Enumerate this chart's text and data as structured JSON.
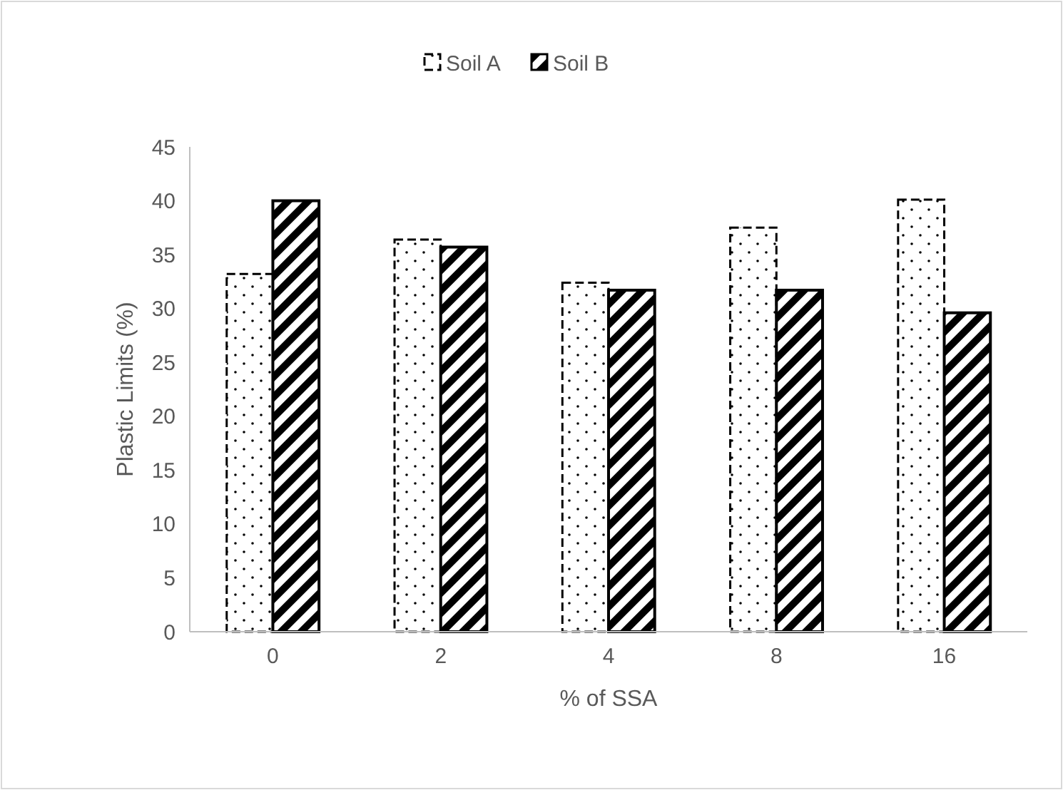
{
  "chart_data": {
    "type": "bar",
    "xlabel": "% of SSA",
    "ylabel": "Plastic Limits (%)",
    "categories": [
      "0",
      "2",
      "4",
      "8",
      "16"
    ],
    "series": [
      {
        "name": "Soil A",
        "color": "#000000",
        "values": [
          33.2,
          36.4,
          32.4,
          37.5,
          40.1
        ]
      },
      {
        "name": "Soil B",
        "color": "#000000",
        "values": [
          40.0,
          35.7,
          31.7,
          31.7,
          29.6
        ]
      }
    ],
    "ylim": [
      0,
      45
    ],
    "yticks": [
      0,
      5,
      10,
      15,
      20,
      25,
      30,
      35,
      40,
      45
    ],
    "grid": false,
    "legend": "top"
  }
}
